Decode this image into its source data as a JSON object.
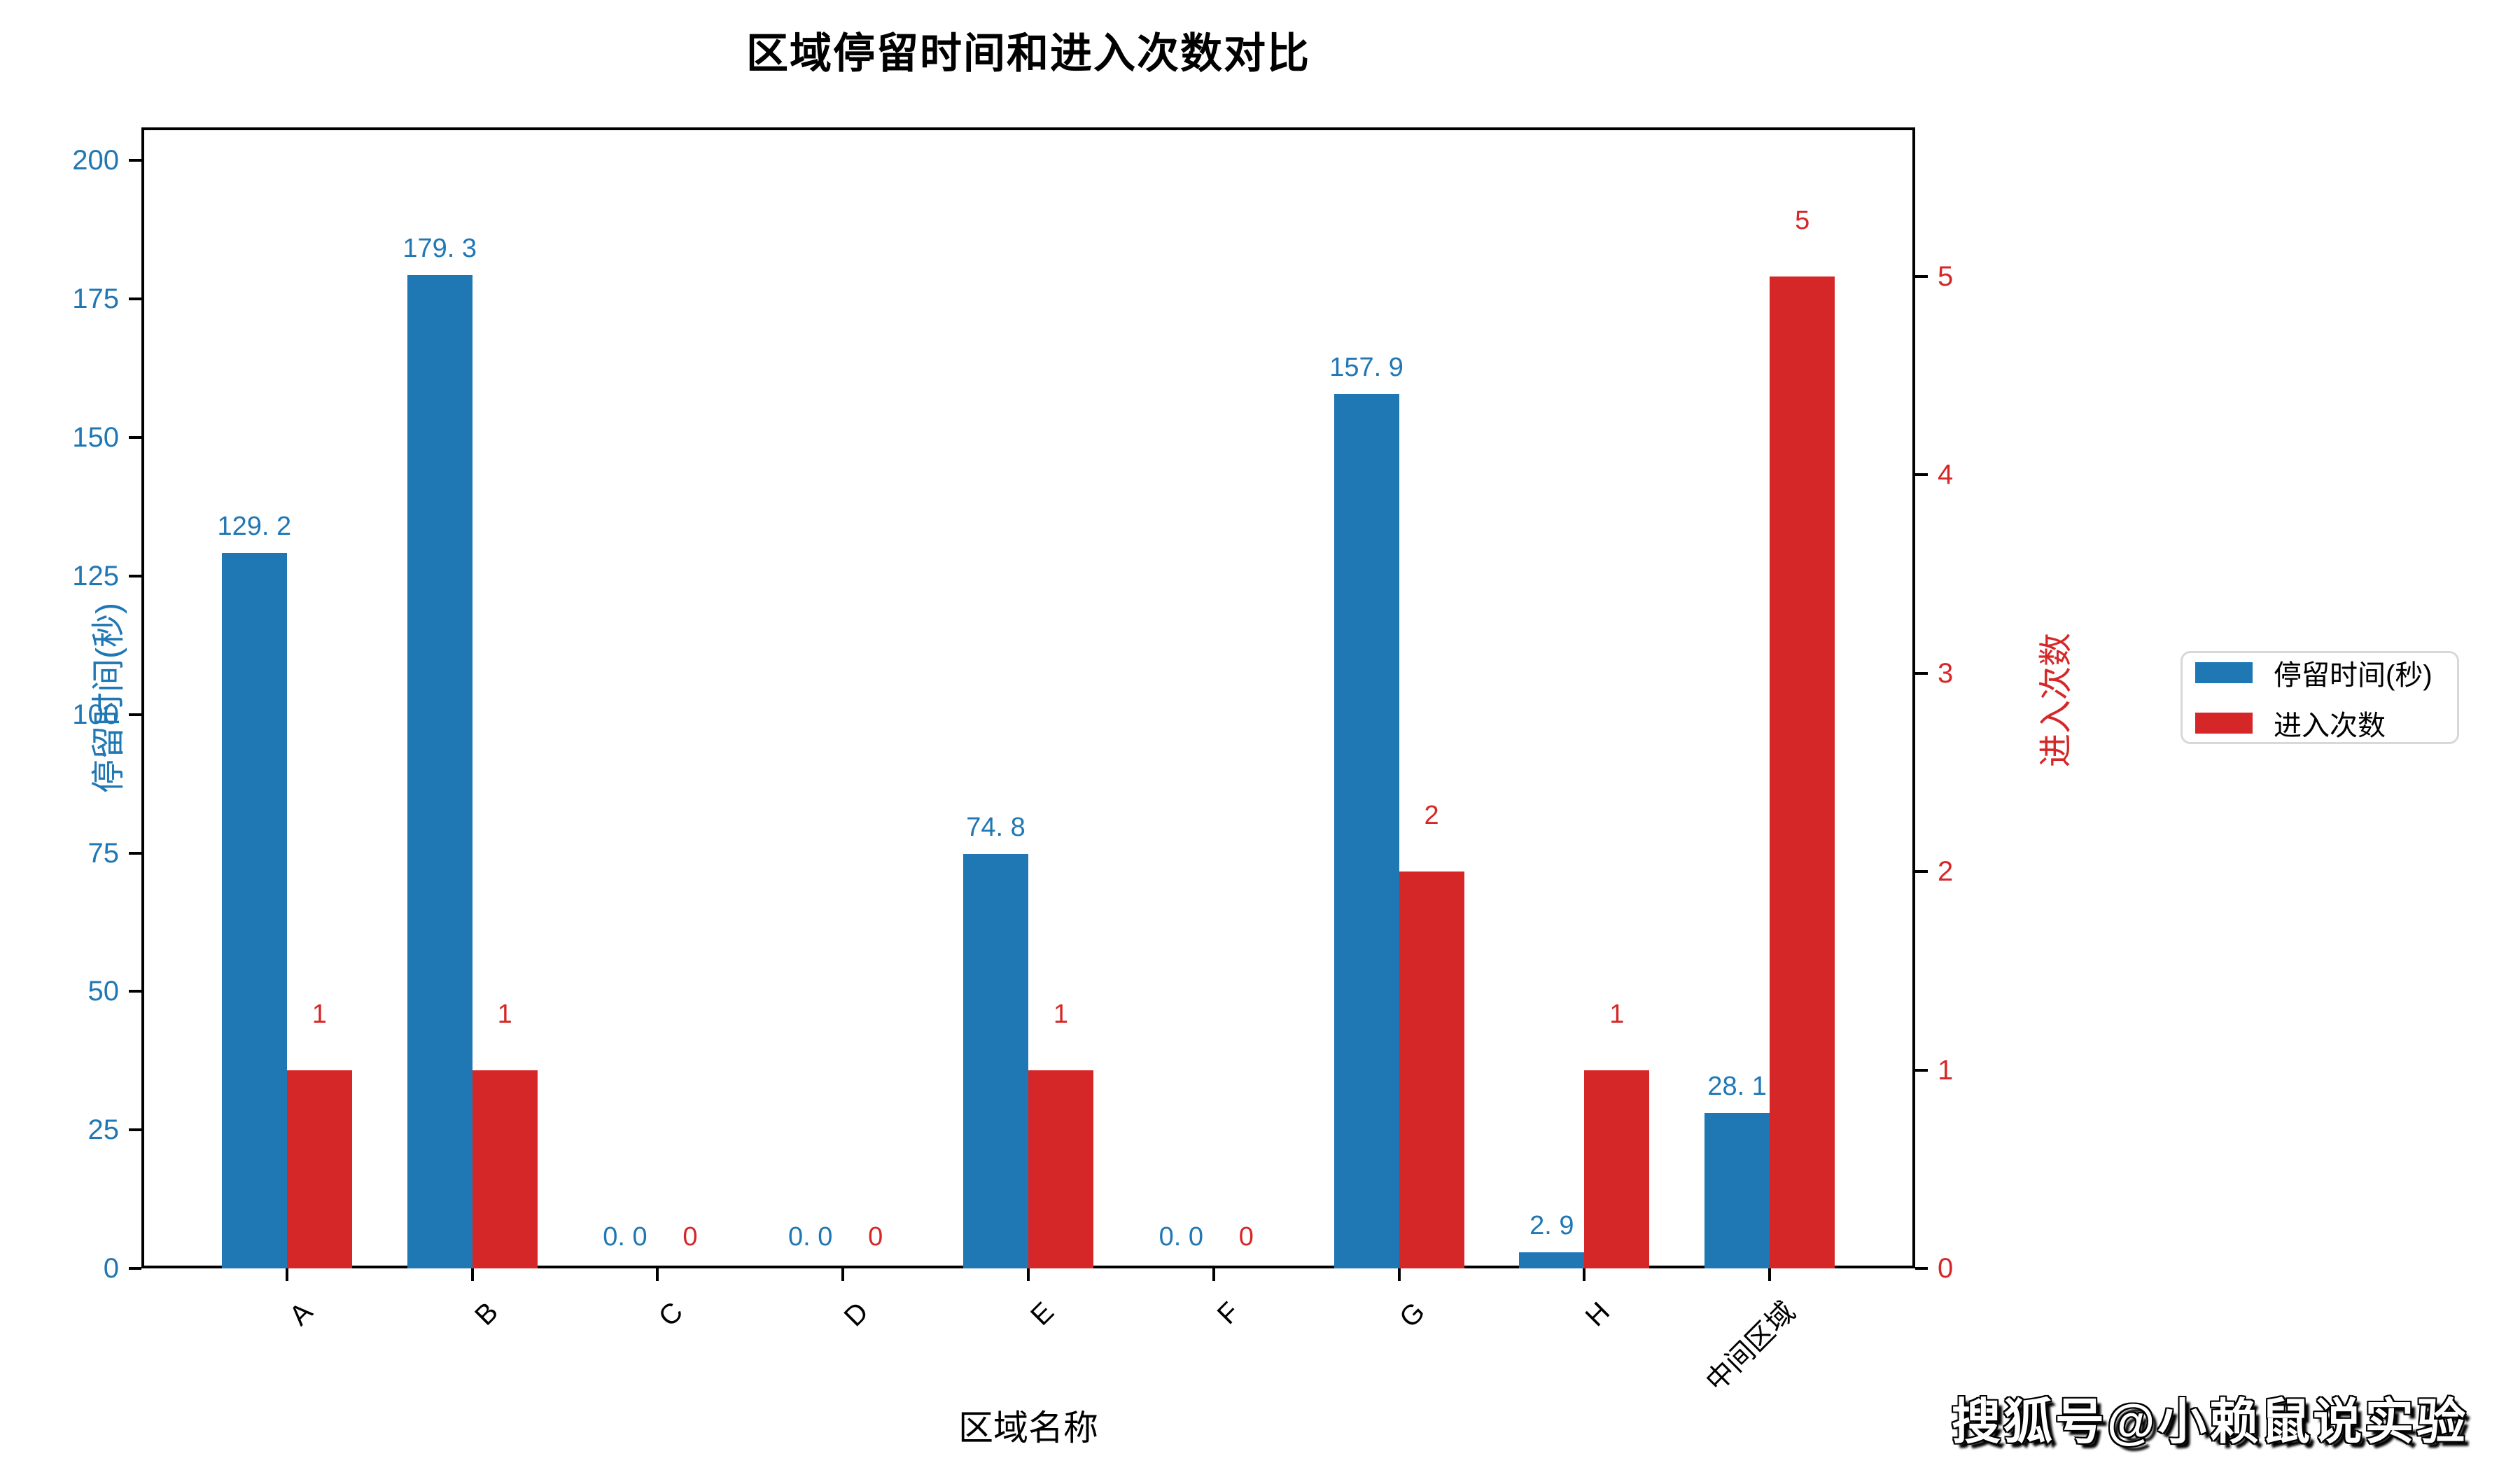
{
  "title": "区域停留时间和进入次数对比",
  "watermark": "搜狐号@小赖鼠说实验",
  "colors": {
    "blue": "#1f77b4",
    "red": "#d62728",
    "axis": "#000000",
    "legend_border": "#d8d8d8",
    "background": "#ffffff"
  },
  "legend": {
    "items": [
      {
        "label": "停留时间(秒)",
        "color": "#1f77b4"
      },
      {
        "label": "进入次数",
        "color": "#d62728"
      }
    ]
  },
  "chart_data": {
    "type": "bar",
    "title": "区域停留时间和进入次数对比",
    "xlabel": "区域名称",
    "ylabel_left": "停留时间(秒)",
    "ylabel_right": "进入次数",
    "categories": [
      "A",
      "B",
      "C",
      "D",
      "E",
      "F",
      "G",
      "H",
      "中间区域"
    ],
    "series": [
      {
        "name": "停留时间(秒)",
        "axis": "left",
        "color": "#1f77b4",
        "values": [
          129.2,
          179.3,
          0.0,
          0.0,
          74.8,
          0.0,
          157.9,
          2.9,
          28.1
        ],
        "labels": [
          "129. 2",
          "179. 3",
          "0. 0",
          "0. 0",
          "74. 8",
          "0. 0",
          "157. 9",
          "2. 9",
          "28. 1"
        ]
      },
      {
        "name": "进入次数",
        "axis": "right",
        "color": "#d62728",
        "values": [
          1,
          1,
          0,
          0,
          1,
          0,
          2,
          1,
          5
        ],
        "labels": [
          "1",
          "1",
          "0",
          "0",
          "1",
          "0",
          "2",
          "1",
          "5"
        ]
      }
    ],
    "left_ticks": [
      0,
      25,
      50,
      75,
      100,
      125,
      150,
      175,
      200
    ],
    "right_ticks": [
      0,
      1,
      2,
      3,
      4,
      5
    ],
    "left_ylim": [
      0,
      206
    ],
    "right_ylim": [
      0,
      5.75
    ],
    "grid": false,
    "legend_position": "center-right",
    "x_tick_rotation_deg": 45
  }
}
